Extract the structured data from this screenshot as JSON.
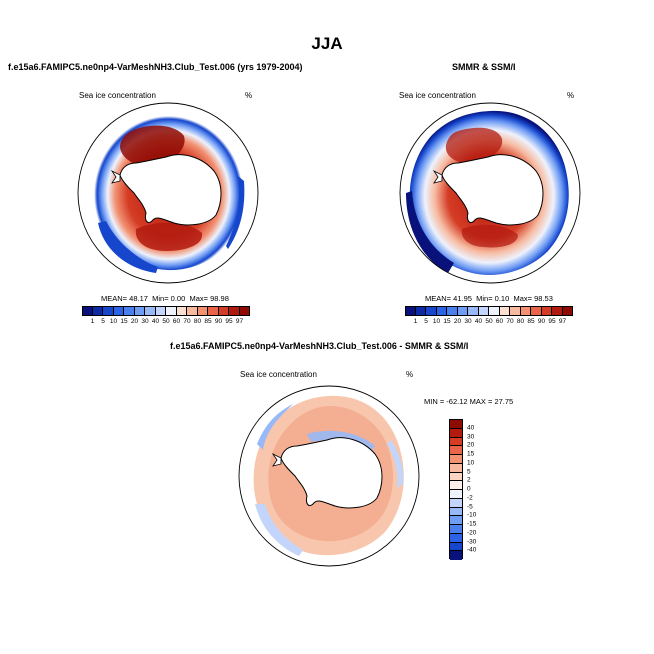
{
  "title": "JJA",
  "panel_left": {
    "title": "f.e15a6.FAMIPC5.ne0np4-VarMeshNH3.Club_Test.006 (yrs 1979-2004)",
    "variable": "Sea ice concentration",
    "units": "%",
    "mean_label": "MEAN=",
    "mean": "48.17",
    "min_label": "Min=",
    "min": "0.00",
    "max_label": "Max=",
    "max": "98.98"
  },
  "panel_right": {
    "title": "SMMR & SSM/I",
    "variable": "Sea ice concentration",
    "units": "%",
    "mean_label": "MEAN=",
    "mean": "41.95",
    "min_label": "Min=",
    "min": "0.10",
    "max_label": "Max=",
    "max": "98.53"
  },
  "panel_diff": {
    "title": "f.e15a6.FAMIPC5.ne0np4-VarMeshNH3.Club_Test.006 - SMMR & SSM/I",
    "variable": "Sea ice concentration",
    "units": "%",
    "minmax_text": "MIN = -62.12 MAX =  27.75"
  },
  "colorbar_conc": {
    "ticks": [
      "1",
      "5",
      "10",
      "15",
      "20",
      "30",
      "40",
      "50",
      "60",
      "70",
      "80",
      "85",
      "90",
      "95",
      "97"
    ],
    "colors": [
      "#08127a",
      "#0c2aa6",
      "#1646cc",
      "#2c62e6",
      "#4a7ff0",
      "#6f9cf4",
      "#98b9f7",
      "#c3d5fa",
      "#eef2fc",
      "#fbe0d2",
      "#f7baa0",
      "#f29273",
      "#e8654a",
      "#d43c25",
      "#b21a0f",
      "#8e0a05"
    ]
  },
  "colorbar_diff": {
    "ticks": [
      "40",
      "30",
      "20",
      "15",
      "10",
      "5",
      "2",
      "0",
      "-2",
      "-5",
      "-10",
      "-15",
      "-20",
      "-30",
      "-40"
    ],
    "colors": [
      "#8e0a05",
      "#b21a0f",
      "#d43c25",
      "#e8654a",
      "#f29273",
      "#f7baa0",
      "#fbd5c2",
      "#fdf0ea",
      "#eef2fc",
      "#c3d5fa",
      "#98b9f7",
      "#6f9cf4",
      "#4a7ff0",
      "#2c62e6",
      "#1646cc",
      "#08127a"
    ]
  }
}
